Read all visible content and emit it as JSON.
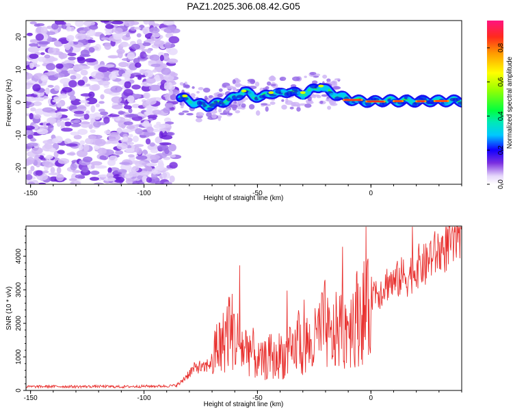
{
  "figure_title": "PAZ1.2025.306.08.42.G05",
  "chart_data": [
    {
      "type": "heatmap",
      "title": "PAZ1.2025.306.08.42.G05",
      "xlabel": "Height of straight line (km)",
      "ylabel": "Frequency (Hz)",
      "xlim": [
        -152,
        40
      ],
      "ylim": [
        -25,
        25
      ],
      "xticks": [
        -150,
        -100,
        -50,
        0
      ],
      "yticks": [
        -20,
        -10,
        0,
        10,
        20
      ],
      "noise_region_x": [
        -152,
        -86
      ],
      "signal_trace": {
        "x": [
          -84,
          -80,
          -76,
          -72,
          -68,
          -64,
          -60,
          -56,
          -52,
          -48,
          -44,
          -40,
          -36,
          -32,
          -28,
          -24,
          -22,
          -18,
          -14,
          -10,
          -6,
          -2,
          0,
          4,
          8,
          12,
          16,
          20,
          24,
          28,
          32,
          36,
          40
        ],
        "freq": [
          1.5,
          0.5,
          -0.5,
          -1.0,
          -0.5,
          0.5,
          1.5,
          3.5,
          2.0,
          1.5,
          3.0,
          2.5,
          3.5,
          2.5,
          3.0,
          4.5,
          5.0,
          3.0,
          2.0,
          1.0,
          0.5,
          0.3,
          0.2,
          0.4,
          0.6,
          0.4,
          0.5,
          0.3,
          0.4,
          0.5,
          0.4,
          0.5,
          0.4
        ]
      },
      "colorbar": {
        "label": "Normalized spectral amplitude",
        "ticks": [
          0.0,
          0.2,
          0.4,
          0.6,
          0.8
        ],
        "tick_labels": [
          "0.0",
          "0.2",
          "0.4",
          "0.6",
          "0.8"
        ],
        "range": [
          0,
          0.96
        ]
      }
    },
    {
      "type": "line",
      "title": "",
      "xlabel": "Height of straight line (km)",
      "ylabel": "SNR (10 * v/v)",
      "xlim": [
        -152,
        40
      ],
      "ylim": [
        0,
        4900
      ],
      "xticks": [
        -150,
        -100,
        -50,
        0
      ],
      "yticks": [
        0,
        1000,
        2000,
        3000,
        4000
      ],
      "series": [
        {
          "name": "SNR",
          "color": "#e8302e",
          "x": [
            -152,
            -140,
            -130,
            -120,
            -110,
            -100,
            -90,
            -86,
            -84,
            -82,
            -80,
            -78,
            -76,
            -74,
            -72,
            -70,
            -68,
            -66,
            -64,
            -62,
            -60,
            -58,
            -56,
            -54,
            -52,
            -50,
            -48,
            -46,
            -44,
            -42,
            -40,
            -38,
            -36,
            -34,
            -32,
            -30,
            -28,
            -26,
            -24,
            -22,
            -20,
            -18,
            -16,
            -14,
            -12,
            -10,
            -8,
            -6,
            -4,
            -2,
            0,
            2,
            4,
            6,
            8,
            10,
            12,
            14,
            16,
            18,
            20,
            22,
            24,
            26,
            28,
            30,
            32,
            34,
            36,
            38,
            40
          ],
          "values": [
            110,
            120,
            115,
            120,
            110,
            125,
            130,
            150,
            220,
            380,
            520,
            640,
            720,
            640,
            760,
            880,
            1700,
            1550,
            2100,
            2450,
            1950,
            1800,
            1500,
            1650,
            1400,
            1100,
            1050,
            1150,
            1300,
            1050,
            1400,
            1250,
            1450,
            1250,
            2100,
            1350,
            1800,
            1500,
            2000,
            2250,
            2500,
            1800,
            2100,
            2350,
            2200,
            2550,
            2650,
            2750,
            2950,
            2900,
            2950,
            3100,
            3000,
            3200,
            3350,
            3250,
            3400,
            3500,
            3450,
            3600,
            3750,
            3850,
            3800,
            4100,
            4150,
            4250,
            4300,
            4450,
            4500,
            4550,
            4600
          ]
        }
      ]
    }
  ]
}
